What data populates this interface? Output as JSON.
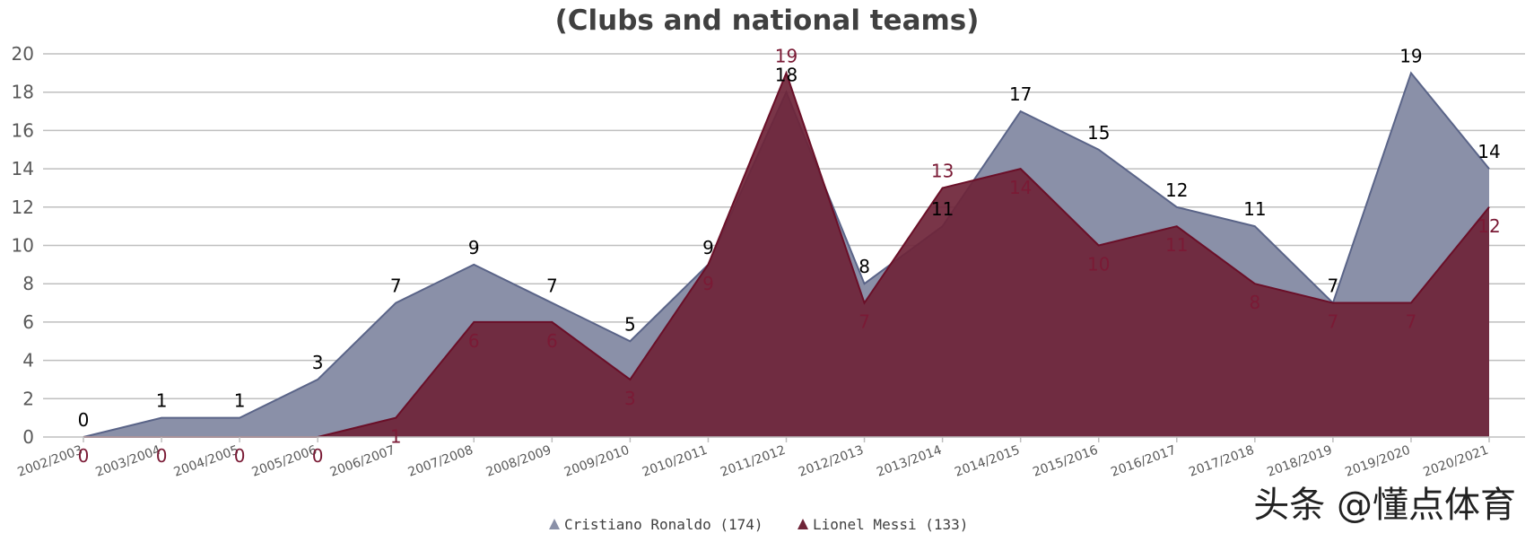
{
  "chart_data": {
    "type": "area",
    "title": "(Clubs and national teams)",
    "categories": [
      "2002/2003",
      "2003/2004",
      "2004/2005",
      "2005/2006",
      "2006/2007",
      "2007/2008",
      "2008/2009",
      "2009/2010",
      "2010/2011",
      "2011/2012",
      "2012/2013",
      "2013/2014",
      "2014/2015",
      "2015/2016",
      "2016/2017",
      "2017/2018",
      "2018/2019",
      "2019/2020",
      "2020/2021"
    ],
    "series": [
      {
        "name": "Cristiano Ronaldo (174)",
        "color": "#8a90a8",
        "line_color": "#5a6488",
        "label_color": "#000000",
        "values": [
          0,
          1,
          1,
          3,
          7,
          9,
          7,
          5,
          9,
          18,
          8,
          11,
          17,
          15,
          12,
          11,
          7,
          19,
          14
        ]
      },
      {
        "name": "Lionel Messi (133)",
        "color": "#6e2438",
        "line_color": "#6a0f28",
        "label_color": "#7a1a35",
        "values": [
          0,
          0,
          0,
          0,
          1,
          6,
          6,
          3,
          9,
          19,
          7,
          13,
          14,
          10,
          11,
          8,
          7,
          7,
          12
        ]
      }
    ],
    "ylim": [
      0,
      20
    ],
    "yticks": [
      0,
      2,
      4,
      6,
      8,
      10,
      12,
      14,
      16,
      18,
      20
    ],
    "grid": true,
    "legend_position": "bottom",
    "xlabel": "",
    "ylabel": ""
  },
  "watermark": "头条 @懂点体育"
}
